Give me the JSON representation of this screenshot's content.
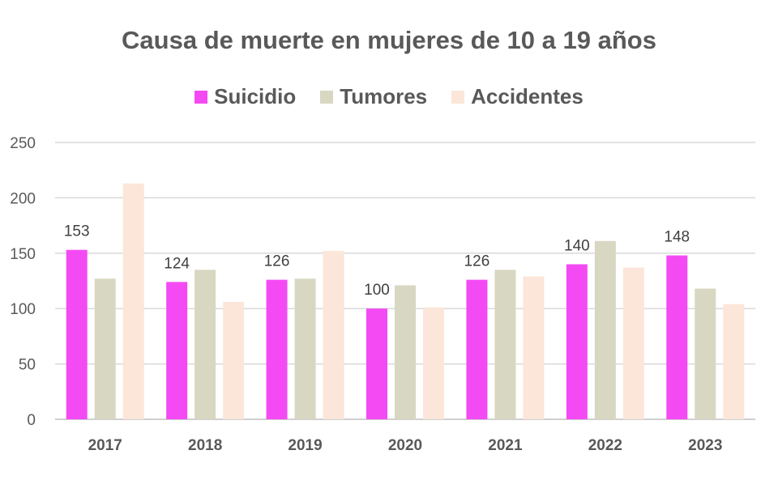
{
  "chart_data": {
    "type": "bar",
    "title": "Causa de muerte en mujeres de 10 a 19 años",
    "xlabel": "",
    "ylabel": "",
    "categories": [
      "2017",
      "2018",
      "2019",
      "2020",
      "2021",
      "2022",
      "2023"
    ],
    "series": [
      {
        "name": "Suicidio",
        "color": "#f44af4",
        "values": [
          153,
          124,
          126,
          100,
          126,
          140,
          148
        ],
        "labels": [
          "153",
          "124",
          "126",
          "100",
          "126",
          "140",
          "148"
        ]
      },
      {
        "name": "Tumores",
        "color": "#d8d7c2",
        "values": [
          127,
          135,
          127,
          121,
          135,
          161,
          118
        ]
      },
      {
        "name": "Accidentes",
        "color": "#fbe6d9",
        "values": [
          213,
          106,
          152,
          101,
          129,
          137,
          104
        ]
      }
    ],
    "ylim": [
      0,
      250
    ],
    "yticks": [
      "0",
      "50",
      "100",
      "150",
      "200",
      "250"
    ],
    "grid": true,
    "legend_position": "top"
  }
}
